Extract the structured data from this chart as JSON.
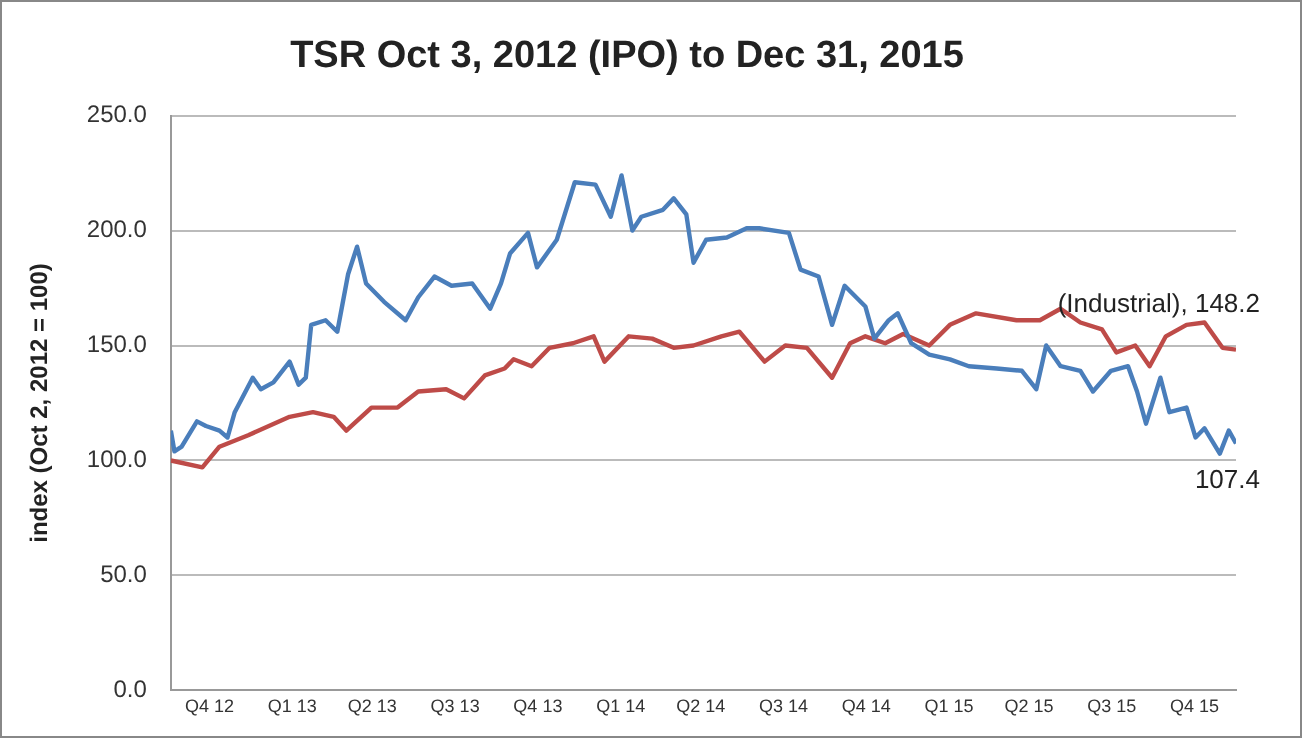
{
  "chart_data": {
    "type": "line",
    "title": "TSR Oct 3, 2012 (IPO) to Dec 31, 2015",
    "ylabel": "index (Oct 2, 2012 = 100)",
    "xlim": [
      "2012-10-03",
      "2015-12-31"
    ],
    "xticks": [
      {
        "value": "2012-11-15",
        "label": "Q4 12"
      },
      {
        "value": "2013-02-15",
        "label": "Q1 13"
      },
      {
        "value": "2013-05-15",
        "label": "Q2 13"
      },
      {
        "value": "2013-08-15",
        "label": "Q3 13"
      },
      {
        "value": "2013-11-15",
        "label": "Q4 13"
      },
      {
        "value": "2014-02-15",
        "label": "Q1 14"
      },
      {
        "value": "2014-05-15",
        "label": "Q2 14"
      },
      {
        "value": "2014-08-15",
        "label": "Q3 14"
      },
      {
        "value": "2014-11-15",
        "label": "Q4 14"
      },
      {
        "value": "2015-02-15",
        "label": "Q1 15"
      },
      {
        "value": "2015-05-15",
        "label": "Q2 15"
      },
      {
        "value": "2015-08-15",
        "label": "Q3 15"
      },
      {
        "value": "2015-11-15",
        "label": "Q4 15"
      }
    ],
    "ylim": [
      0,
      250
    ],
    "yticks": [
      {
        "value": 0,
        "label": "0.0"
      },
      {
        "value": 50,
        "label": "50.0"
      },
      {
        "value": 100,
        "label": "100.0"
      },
      {
        "value": 150,
        "label": "150.0"
      },
      {
        "value": 200,
        "label": "200.0"
      },
      {
        "value": 250,
        "label": "250.0"
      }
    ],
    "grid": "y",
    "legend": false,
    "marker": "none",
    "line_style": "solid",
    "series": [
      {
        "color": "#4a7ebb",
        "x": [
          "2012-10-03",
          "2012-10-07",
          "2012-10-15",
          "2012-11-01",
          "2012-11-11",
          "2012-11-26",
          "2012-12-05",
          "2012-12-13",
          "2013-01-02",
          "2013-01-11",
          "2013-01-25",
          "2013-02-12",
          "2013-02-22",
          "2013-03-02",
          "2013-03-08",
          "2013-03-24",
          "2013-04-06",
          "2013-04-18",
          "2013-04-28",
          "2013-05-08",
          "2013-05-28",
          "2013-06-21",
          "2013-07-05",
          "2013-07-23",
          "2013-08-11",
          "2013-09-03",
          "2013-09-23",
          "2013-10-05",
          "2013-10-15",
          "2013-11-04",
          "2013-11-14",
          "2013-12-06",
          "2013-12-26",
          "2014-01-18",
          "2014-02-04",
          "2014-02-16",
          "2014-02-28",
          "2014-03-10",
          "2014-04-03",
          "2014-04-15",
          "2014-04-29",
          "2014-05-07",
          "2014-05-21",
          "2014-06-13",
          "2014-07-05",
          "2014-07-19",
          "2014-08-21",
          "2014-09-03",
          "2014-09-23",
          "2014-10-08",
          "2014-10-22",
          "2014-11-14",
          "2014-11-24",
          "2014-12-10",
          "2014-12-20",
          "2015-01-04",
          "2015-01-24",
          "2015-02-16",
          "2015-03-09",
          "2015-04-09",
          "2015-05-07",
          "2015-05-23",
          "2015-06-03",
          "2015-06-19",
          "2015-07-11",
          "2015-07-25",
          "2015-08-14",
          "2015-09-02",
          "2015-09-12",
          "2015-09-22",
          "2015-10-08",
          "2015-10-18",
          "2015-11-06",
          "2015-11-16",
          "2015-11-26",
          "2015-12-13",
          "2015-12-23",
          "2015-12-31"
        ],
        "values": [
          113,
          104,
          106,
          117,
          115,
          113,
          110,
          121,
          136,
          131,
          134,
          143,
          133,
          136,
          159,
          161,
          156,
          181,
          193,
          177,
          169,
          161,
          171,
          180,
          176,
          177,
          166,
          177,
          190,
          199,
          184,
          196,
          221,
          220,
          206,
          224,
          200,
          206,
          209,
          214,
          207,
          186,
          196,
          197,
          201,
          201,
          199,
          183,
          180,
          159,
          176,
          167,
          153,
          161,
          164,
          151,
          146,
          144,
          141,
          140,
          139,
          131,
          150,
          141,
          139,
          130,
          139,
          141,
          130,
          116,
          136,
          121,
          123,
          110,
          114,
          103,
          113,
          107.4
        ]
      },
      {
        "color": "#be4b48",
        "x": [
          "2012-10-03",
          "2012-11-07",
          "2012-11-26",
          "2012-12-28",
          "2013-02-12",
          "2013-03-10",
          "2013-04-02",
          "2013-04-16",
          "2013-05-14",
          "2013-06-12",
          "2013-07-05",
          "2013-08-05",
          "2013-08-25",
          "2013-09-17",
          "2013-10-09",
          "2013-10-19",
          "2013-11-08",
          "2013-11-28",
          "2013-12-24",
          "2014-01-16",
          "2014-01-28",
          "2014-02-24",
          "2014-03-22",
          "2014-04-15",
          "2014-05-07",
          "2014-06-07",
          "2014-06-27",
          "2014-07-25",
          "2014-08-17",
          "2014-09-10",
          "2014-10-08",
          "2014-10-28",
          "2014-11-14",
          "2014-12-06",
          "2014-12-26",
          "2015-01-24",
          "2015-02-16",
          "2015-03-17",
          "2015-05-01",
          "2015-05-27",
          "2015-06-19",
          "2015-07-11",
          "2015-08-04",
          "2015-08-20",
          "2015-09-10",
          "2015-09-26",
          "2015-10-14",
          "2015-11-06",
          "2015-11-26",
          "2015-12-16",
          "2015-12-31"
        ],
        "values": [
          100,
          97,
          106,
          111,
          119,
          121,
          119,
          113,
          123,
          123,
          130,
          131,
          127,
          137,
          140,
          144,
          141,
          149,
          151,
          154,
          143,
          154,
          153,
          149,
          150,
          154,
          156,
          143,
          150,
          149,
          136,
          151,
          154,
          151,
          155,
          150,
          159,
          164,
          161,
          161,
          166,
          160,
          157,
          147,
          150,
          141,
          154,
          159,
          160,
          149,
          148.2
        ]
      }
    ],
    "annotations": [
      {
        "text": "(Industrial), 148.2",
        "x": "2015-12-31",
        "y": 148.2
      },
      {
        "text": "107.4",
        "x": "2015-12-31",
        "y": 107.4
      }
    ]
  }
}
